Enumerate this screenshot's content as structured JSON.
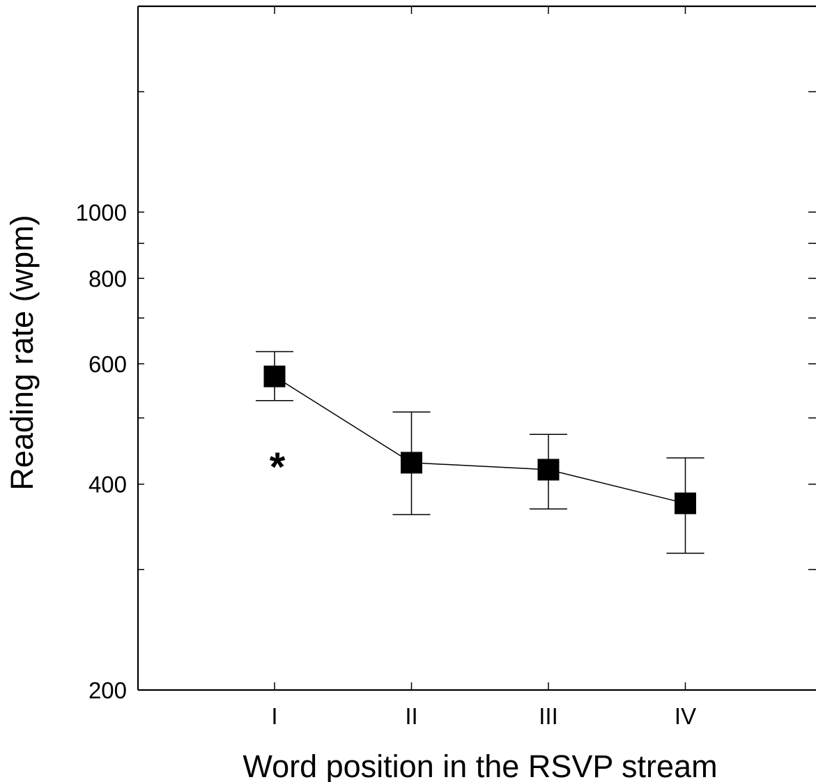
{
  "chart_data": {
    "type": "line",
    "title": "",
    "xlabel": "Word position in the RSVP stream",
    "ylabel": "Reading rate (wpm)",
    "y_scale": "log",
    "ylim": [
      200,
      2000
    ],
    "categories": [
      "I",
      "II",
      "III",
      "IV"
    ],
    "y_tick_labels": [
      200,
      400,
      600,
      800,
      1000
    ],
    "y_minor_ticks": [
      300,
      500,
      700,
      900,
      1500
    ],
    "series": [
      {
        "values": [
          575,
          430,
          420,
          375
        ],
        "error_upper": [
          625,
          510,
          473,
          437
        ],
        "error_lower": [
          530,
          361,
          368,
          317
        ],
        "marker": "square",
        "color": "#000000"
      }
    ],
    "annotations": [
      {
        "text": "*",
        "category": "I"
      }
    ],
    "grid": false,
    "legend": "none"
  }
}
